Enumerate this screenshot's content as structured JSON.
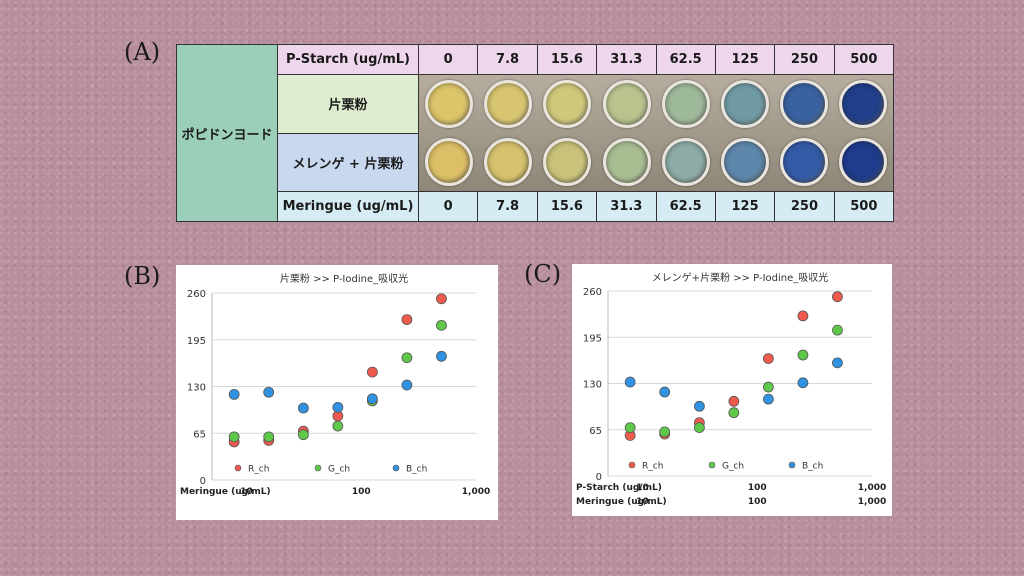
{
  "labels": {
    "a": "(A)",
    "b": "(B)",
    "c": "(C)"
  },
  "table": {
    "row_header": "ポピドンヨード",
    "top_header": "P-Starch (ug/mL)",
    "top_values": [
      "0",
      "7.8",
      "15.6",
      "31.3",
      "62.5",
      "125",
      "250",
      "500"
    ],
    "row1_label": "片栗粉",
    "row2_label": "メレンゲ + 片栗粉",
    "bottom_header": "Meringue (ug/mL)",
    "bottom_values": [
      "0",
      "7.8",
      "15.6",
      "31.3",
      "62.5",
      "125",
      "250",
      "500"
    ],
    "well_colors_row1": [
      "#dcc46a",
      "#d8c570",
      "#cfc77a",
      "#b8c38e",
      "#9eb89a",
      "#6f9aa4",
      "#3a62a0",
      "#213f8a"
    ],
    "well_colors_row2": [
      "#dcbf66",
      "#d6c26d",
      "#c9c27a",
      "#a9bd93",
      "#8daba7",
      "#5e86aa",
      "#335ba6",
      "#1f3c8c"
    ]
  },
  "chart_data": [
    {
      "type": "scatter",
      "title": "片栗粉 >> P-Iodine_吸収光",
      "xscale": "log",
      "xlim": [
        5,
        1000
      ],
      "ylim": [
        0,
        260
      ],
      "yticks": [
        "0",
        "65",
        "130",
        "195",
        "260"
      ],
      "xtick_labels": [
        {
          "row": "Meringue (ug/mL)",
          "ticks": [
            "10",
            "100",
            "1,000"
          ]
        }
      ],
      "grid": true,
      "legend": "bottom",
      "series": [
        {
          "name": "R_ch",
          "color": "#ef5a4e",
          "x": [
            7.8,
            15.6,
            31.3,
            62.5,
            125,
            250,
            500
          ],
          "y": [
            53,
            55,
            68,
            89,
            150,
            223,
            252
          ]
        },
        {
          "name": "G_ch",
          "color": "#5fc84a",
          "x": [
            7.8,
            15.6,
            31.3,
            62.5,
            125,
            250,
            500
          ],
          "y": [
            60,
            60,
            63,
            75,
            110,
            170,
            215
          ]
        },
        {
          "name": "B_ch",
          "color": "#2f92e2",
          "x": [
            7.8,
            15.6,
            31.3,
            62.5,
            125,
            250,
            500
          ],
          "y": [
            119,
            122,
            100,
            101,
            113,
            132,
            172
          ]
        }
      ]
    },
    {
      "type": "scatter",
      "title": "メレンゲ+片栗粉 >> P-Iodine_吸収光",
      "xscale": "log",
      "xlim": [
        5,
        1000
      ],
      "ylim": [
        0,
        260
      ],
      "yticks": [
        "0",
        "65",
        "130",
        "195",
        "260"
      ],
      "xtick_labels": [
        {
          "row": "P-Starch (ug/mL)",
          "ticks": [
            "10",
            "100",
            "1,000"
          ]
        },
        {
          "row": "Meringue (ug/mL)",
          "ticks": [
            "10",
            "100",
            "1,000"
          ]
        }
      ],
      "grid": true,
      "legend": "bottom",
      "series": [
        {
          "name": "R_ch",
          "color": "#ef5a4e",
          "x": [
            7.8,
            15.6,
            31.3,
            62.5,
            125,
            250,
            500
          ],
          "y": [
            57,
            59,
            75,
            105,
            165,
            225,
            252
          ]
        },
        {
          "name": "G_ch",
          "color": "#5fc84a",
          "x": [
            7.8,
            15.6,
            31.3,
            62.5,
            125,
            250,
            500
          ],
          "y": [
            68,
            62,
            68,
            89,
            125,
            170,
            205
          ]
        },
        {
          "name": "B_ch",
          "color": "#2f92e2",
          "x": [
            7.8,
            15.6,
            31.3,
            62.5,
            125,
            250,
            500
          ],
          "y": [
            132,
            118,
            98,
            null,
            108,
            131,
            159
          ]
        }
      ]
    }
  ]
}
